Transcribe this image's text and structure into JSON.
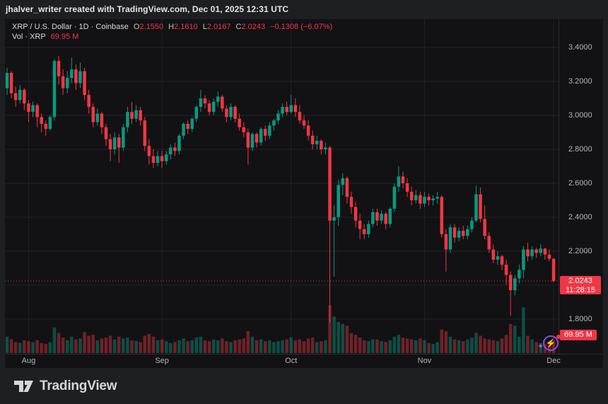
{
  "attribution": {
    "text": "jhalver_writer created with TradingView.com, Dec 01, 2025 12:31 UTC"
  },
  "legend": {
    "symbol_text": "XRP / U.S. Dollar · 1D · Coinbase",
    "o_label": "O",
    "o_value": "2.1550",
    "h_label": "H",
    "h_value": "2.1610",
    "l_label": "L",
    "l_value": "2.0167",
    "c_label": "C",
    "c_value": "2.0243",
    "change": "−0.1308 (−6.07%)",
    "vol_label": "Vol · XRP",
    "vol_value": "69.95 M"
  },
  "price_scale": {
    "labels": [
      "3.4000",
      "3.2000",
      "3.0000",
      "2.8000",
      "2.6000",
      "2.4000",
      "2.2000",
      "1.8000"
    ],
    "current": {
      "price": "2.0243",
      "countdown": "11:28:15"
    },
    "volume_badge": "69.95 M"
  },
  "time_scale": {
    "labels": [
      "Aug",
      "Sep",
      "Oct",
      "Nov",
      "Dec"
    ]
  },
  "footer": {
    "logo_text": "TradingView"
  },
  "colors": {
    "up": "#089981",
    "down": "#f23645",
    "vol_up": "rgba(8,153,129,0.45)",
    "vol_down": "rgba(242,54,69,0.42)",
    "grid": "rgba(255,255,255,0.07)",
    "axis_text": "#b2b5be",
    "widget_bg": "#121214",
    "outer_bg": "#1e1f22",
    "accent_red": "#f23645"
  },
  "chart_data": {
    "type": "candlestick",
    "symbol": "XRP / U.S. Dollar",
    "interval": "1D",
    "exchange": "Coinbase",
    "readout": {
      "open": 2.155,
      "high": 2.161,
      "low": 2.0167,
      "close": 2.0243,
      "change": -0.1308,
      "change_pct": -6.07
    },
    "volume_readout_m": 69.95,
    "current_price": 2.0243,
    "countdown": "11:28:15",
    "price_axis": {
      "min": 1.66,
      "max": 3.45,
      "tick_step": 0.2,
      "ticks": [
        3.4,
        3.2,
        3.0,
        2.8,
        2.6,
        2.4,
        2.2,
        1.8
      ]
    },
    "x_axis": {
      "labels": [
        "Aug",
        "Sep",
        "Oct",
        "Nov",
        "Dec"
      ]
    },
    "columns": [
      "date",
      "open",
      "high",
      "low",
      "close",
      "volume_m"
    ],
    "candles": [
      [
        "2025-07-27",
        3.16,
        3.28,
        3.12,
        3.25,
        90
      ],
      [
        "2025-07-28",
        3.25,
        3.26,
        3.1,
        3.13,
        75
      ],
      [
        "2025-07-29",
        3.13,
        3.17,
        3.05,
        3.09,
        60
      ],
      [
        "2025-07-30",
        3.09,
        3.18,
        3.07,
        3.15,
        55
      ],
      [
        "2025-07-31",
        3.15,
        3.16,
        3.03,
        3.07,
        70
      ],
      [
        "2025-08-01",
        3.07,
        3.09,
        2.96,
        3.02,
        65
      ],
      [
        "2025-08-02",
        3.02,
        3.08,
        2.99,
        3.06,
        60
      ],
      [
        "2025-08-03",
        3.06,
        3.07,
        2.93,
        2.99,
        70
      ],
      [
        "2025-08-04",
        2.99,
        3.01,
        2.9,
        2.95,
        55
      ],
      [
        "2025-08-05",
        2.95,
        2.97,
        2.88,
        2.92,
        50
      ],
      [
        "2025-08-06",
        2.92,
        3.0,
        2.91,
        2.99,
        60
      ],
      [
        "2025-08-07",
        2.99,
        3.33,
        2.97,
        3.32,
        140
      ],
      [
        "2025-08-08",
        3.32,
        3.35,
        3.18,
        3.23,
        110
      ],
      [
        "2025-08-09",
        3.23,
        3.27,
        3.12,
        3.16,
        85
      ],
      [
        "2025-08-10",
        3.16,
        3.26,
        3.13,
        3.22,
        70
      ],
      [
        "2025-08-11",
        3.22,
        3.34,
        3.19,
        3.27,
        90
      ],
      [
        "2025-08-12",
        3.27,
        3.3,
        3.15,
        3.19,
        75
      ],
      [
        "2025-08-13",
        3.19,
        3.31,
        3.16,
        3.26,
        80
      ],
      [
        "2025-08-14",
        3.26,
        3.28,
        3.09,
        3.12,
        115
      ],
      [
        "2025-08-15",
        3.12,
        3.15,
        3.01,
        3.05,
        95
      ],
      [
        "2025-08-16",
        3.05,
        3.07,
        2.93,
        2.96,
        100
      ],
      [
        "2025-08-17",
        2.96,
        3.04,
        2.94,
        3.01,
        70
      ],
      [
        "2025-08-18",
        3.01,
        3.02,
        2.89,
        2.93,
        80
      ],
      [
        "2025-08-19",
        2.93,
        2.95,
        2.82,
        2.86,
        85
      ],
      [
        "2025-08-20",
        2.86,
        2.89,
        2.73,
        2.8,
        95
      ],
      [
        "2025-08-21",
        2.8,
        2.9,
        2.77,
        2.87,
        75
      ],
      [
        "2025-08-22",
        2.87,
        2.89,
        2.72,
        2.81,
        90
      ],
      [
        "2025-08-23",
        2.81,
        2.95,
        2.79,
        2.93,
        80
      ],
      [
        "2025-08-24",
        2.93,
        3.05,
        2.9,
        3.02,
        85
      ],
      [
        "2025-08-25",
        3.02,
        3.08,
        2.95,
        2.98,
        70
      ],
      [
        "2025-08-26",
        2.98,
        3.06,
        2.96,
        3.03,
        65
      ],
      [
        "2025-08-27",
        3.03,
        3.05,
        2.94,
        2.97,
        60
      ],
      [
        "2025-08-28",
        2.97,
        2.99,
        2.79,
        2.82,
        95
      ],
      [
        "2025-08-29",
        2.82,
        2.86,
        2.71,
        2.76,
        105
      ],
      [
        "2025-08-30",
        2.76,
        2.8,
        2.69,
        2.72,
        90
      ],
      [
        "2025-08-31",
        2.72,
        2.79,
        2.7,
        2.76,
        70
      ],
      [
        "2025-09-01",
        2.76,
        2.79,
        2.69,
        2.73,
        75
      ],
      [
        "2025-09-02",
        2.73,
        2.79,
        2.71,
        2.77,
        65
      ],
      [
        "2025-09-03",
        2.77,
        2.83,
        2.74,
        2.81,
        55
      ],
      [
        "2025-09-04",
        2.81,
        2.84,
        2.76,
        2.79,
        60
      ],
      [
        "2025-09-05",
        2.79,
        2.89,
        2.77,
        2.88,
        70
      ],
      [
        "2025-09-06",
        2.88,
        2.96,
        2.86,
        2.95,
        80
      ],
      [
        "2025-09-07",
        2.95,
        2.97,
        2.89,
        2.92,
        65
      ],
      [
        "2025-09-08",
        2.92,
        2.99,
        2.9,
        2.98,
        70
      ],
      [
        "2025-09-09",
        2.98,
        3.06,
        2.96,
        3.05,
        85
      ],
      [
        "2025-09-10",
        3.05,
        3.15,
        3.02,
        3.1,
        90
      ],
      [
        "2025-09-11",
        3.1,
        3.12,
        3.04,
        3.07,
        70
      ],
      [
        "2025-09-12",
        3.07,
        3.09,
        3.0,
        3.02,
        65
      ],
      [
        "2025-09-13",
        3.02,
        3.1,
        3.0,
        3.08,
        75
      ],
      [
        "2025-09-14",
        3.08,
        3.14,
        3.05,
        3.11,
        70
      ],
      [
        "2025-09-15",
        3.11,
        3.12,
        3.02,
        3.04,
        80
      ],
      [
        "2025-09-16",
        3.04,
        3.06,
        2.96,
        2.99,
        65
      ],
      [
        "2025-09-17",
        2.99,
        3.07,
        2.97,
        3.05,
        60
      ],
      [
        "2025-09-18",
        3.05,
        3.06,
        2.96,
        2.98,
        70
      ],
      [
        "2025-09-19",
        2.98,
        3.01,
        2.91,
        2.93,
        75
      ],
      [
        "2025-09-20",
        2.93,
        2.96,
        2.87,
        2.9,
        80
      ],
      [
        "2025-09-21",
        2.9,
        2.92,
        2.71,
        2.81,
        120
      ],
      [
        "2025-09-22",
        2.81,
        2.9,
        2.79,
        2.89,
        90
      ],
      [
        "2025-09-23",
        2.89,
        2.9,
        2.81,
        2.84,
        70
      ],
      [
        "2025-09-24",
        2.84,
        2.93,
        2.82,
        2.92,
        75
      ],
      [
        "2025-09-25",
        2.92,
        2.94,
        2.85,
        2.88,
        65
      ],
      [
        "2025-09-26",
        2.88,
        2.96,
        2.86,
        2.94,
        70
      ],
      [
        "2025-09-27",
        2.94,
        2.98,
        2.91,
        2.97,
        60
      ],
      [
        "2025-09-28",
        2.97,
        3.03,
        2.95,
        3.01,
        65
      ],
      [
        "2025-09-29",
        3.01,
        3.07,
        2.99,
        3.05,
        70
      ],
      [
        "2025-09-30",
        3.05,
        3.08,
        3.0,
        3.02,
        75
      ],
      [
        "2025-10-01",
        3.02,
        3.12,
        3.01,
        3.06,
        85
      ],
      [
        "2025-10-02",
        3.06,
        3.1,
        2.99,
        3.02,
        70
      ],
      [
        "2025-10-03",
        3.02,
        3.06,
        2.95,
        2.97,
        75
      ],
      [
        "2025-10-04",
        2.97,
        3.0,
        2.92,
        2.94,
        65
      ],
      [
        "2025-10-05",
        2.94,
        2.97,
        2.85,
        2.88,
        80
      ],
      [
        "2025-10-06",
        2.88,
        2.91,
        2.8,
        2.83,
        85
      ],
      [
        "2025-10-07",
        2.83,
        2.88,
        2.8,
        2.85,
        60
      ],
      [
        "2025-10-08",
        2.85,
        2.86,
        2.77,
        2.8,
        65
      ],
      [
        "2025-10-09",
        2.8,
        2.84,
        2.77,
        2.81,
        70
      ],
      [
        "2025-10-10",
        2.81,
        2.82,
        1.78,
        2.38,
        260
      ],
      [
        "2025-10-11",
        2.38,
        2.47,
        2.05,
        2.4,
        200
      ],
      [
        "2025-10-12",
        2.4,
        2.62,
        2.35,
        2.59,
        170
      ],
      [
        "2025-10-13",
        2.59,
        2.66,
        2.53,
        2.63,
        160
      ],
      [
        "2025-10-14",
        2.63,
        2.64,
        2.48,
        2.52,
        150
      ],
      [
        "2025-10-15",
        2.52,
        2.55,
        2.42,
        2.46,
        110
      ],
      [
        "2025-10-16",
        2.46,
        2.49,
        2.34,
        2.38,
        100
      ],
      [
        "2025-10-17",
        2.38,
        2.42,
        2.27,
        2.33,
        85
      ],
      [
        "2025-10-18",
        2.33,
        2.36,
        2.27,
        2.3,
        70
      ],
      [
        "2025-10-19",
        2.3,
        2.38,
        2.28,
        2.36,
        65
      ],
      [
        "2025-10-20",
        2.36,
        2.45,
        2.34,
        2.43,
        75
      ],
      [
        "2025-10-21",
        2.43,
        2.45,
        2.35,
        2.38,
        75
      ],
      [
        "2025-10-22",
        2.38,
        2.44,
        2.36,
        2.42,
        65
      ],
      [
        "2025-10-23",
        2.42,
        2.43,
        2.33,
        2.36,
        60
      ],
      [
        "2025-10-24",
        2.36,
        2.46,
        2.34,
        2.45,
        70
      ],
      [
        "2025-10-25",
        2.45,
        2.6,
        2.43,
        2.58,
        90
      ],
      [
        "2025-10-26",
        2.58,
        2.7,
        2.55,
        2.64,
        100
      ],
      [
        "2025-10-27",
        2.64,
        2.67,
        2.57,
        2.6,
        85
      ],
      [
        "2025-10-28",
        2.6,
        2.63,
        2.52,
        2.55,
        80
      ],
      [
        "2025-10-29",
        2.55,
        2.58,
        2.47,
        2.5,
        75
      ],
      [
        "2025-10-30",
        2.5,
        2.56,
        2.48,
        2.53,
        70
      ],
      [
        "2025-10-31",
        2.53,
        2.55,
        2.45,
        2.48,
        80
      ],
      [
        "2025-11-01",
        2.48,
        2.55,
        2.46,
        2.52,
        70
      ],
      [
        "2025-11-02",
        2.52,
        2.54,
        2.47,
        2.5,
        55
      ],
      [
        "2025-11-03",
        2.5,
        2.53,
        2.47,
        2.51,
        50
      ],
      [
        "2025-11-04",
        2.51,
        2.55,
        2.48,
        2.52,
        60
      ],
      [
        "2025-11-05",
        2.52,
        2.53,
        2.28,
        2.3,
        130
      ],
      [
        "2025-11-06",
        2.3,
        2.33,
        2.08,
        2.21,
        120
      ],
      [
        "2025-11-07",
        2.21,
        2.36,
        2.19,
        2.34,
        90
      ],
      [
        "2025-11-08",
        2.34,
        2.36,
        2.25,
        2.28,
        75
      ],
      [
        "2025-11-09",
        2.28,
        2.34,
        2.26,
        2.32,
        70
      ],
      [
        "2025-11-10",
        2.32,
        2.35,
        2.27,
        2.29,
        65
      ],
      [
        "2025-11-11",
        2.29,
        2.35,
        2.27,
        2.33,
        75
      ],
      [
        "2025-11-12",
        2.33,
        2.4,
        2.31,
        2.38,
        85
      ],
      [
        "2025-11-13",
        2.38,
        2.585,
        2.37,
        2.535,
        110
      ],
      [
        "2025-11-14",
        2.535,
        2.575,
        2.37,
        2.39,
        95
      ],
      [
        "2025-11-15",
        2.39,
        2.47,
        2.27,
        2.29,
        80
      ],
      [
        "2025-11-16",
        2.29,
        2.31,
        2.19,
        2.21,
        75
      ],
      [
        "2025-11-17",
        2.21,
        2.24,
        2.13,
        2.15,
        70
      ],
      [
        "2025-11-18",
        2.15,
        2.2,
        2.12,
        2.17,
        65
      ],
      [
        "2025-11-19",
        2.17,
        2.18,
        2.09,
        2.12,
        80
      ],
      [
        "2025-11-20",
        2.12,
        2.15,
        2.0,
        2.06,
        100
      ],
      [
        "2025-11-21",
        2.06,
        2.08,
        1.82,
        1.97,
        160
      ],
      [
        "2025-11-22",
        1.97,
        2.06,
        1.94,
        2.04,
        150
      ],
      [
        "2025-11-23",
        2.04,
        2.12,
        2.01,
        2.09,
        90
      ],
      [
        "2025-11-24",
        2.09,
        2.23,
        2.04,
        2.21,
        250
      ],
      [
        "2025-11-25",
        2.21,
        2.25,
        2.14,
        2.17,
        95
      ],
      [
        "2025-11-26",
        2.17,
        2.23,
        2.15,
        2.21,
        75
      ],
      [
        "2025-11-27",
        2.21,
        2.22,
        2.16,
        2.19,
        60
      ],
      [
        "2025-11-28",
        2.19,
        2.24,
        2.17,
        2.215,
        55
      ],
      [
        "2025-11-29",
        2.215,
        2.22,
        2.15,
        2.18,
        50
      ],
      [
        "2025-11-30",
        2.18,
        2.21,
        2.14,
        2.155,
        65
      ],
      [
        "2025-12-01",
        2.155,
        2.161,
        2.0167,
        2.0243,
        69.95
      ]
    ]
  }
}
